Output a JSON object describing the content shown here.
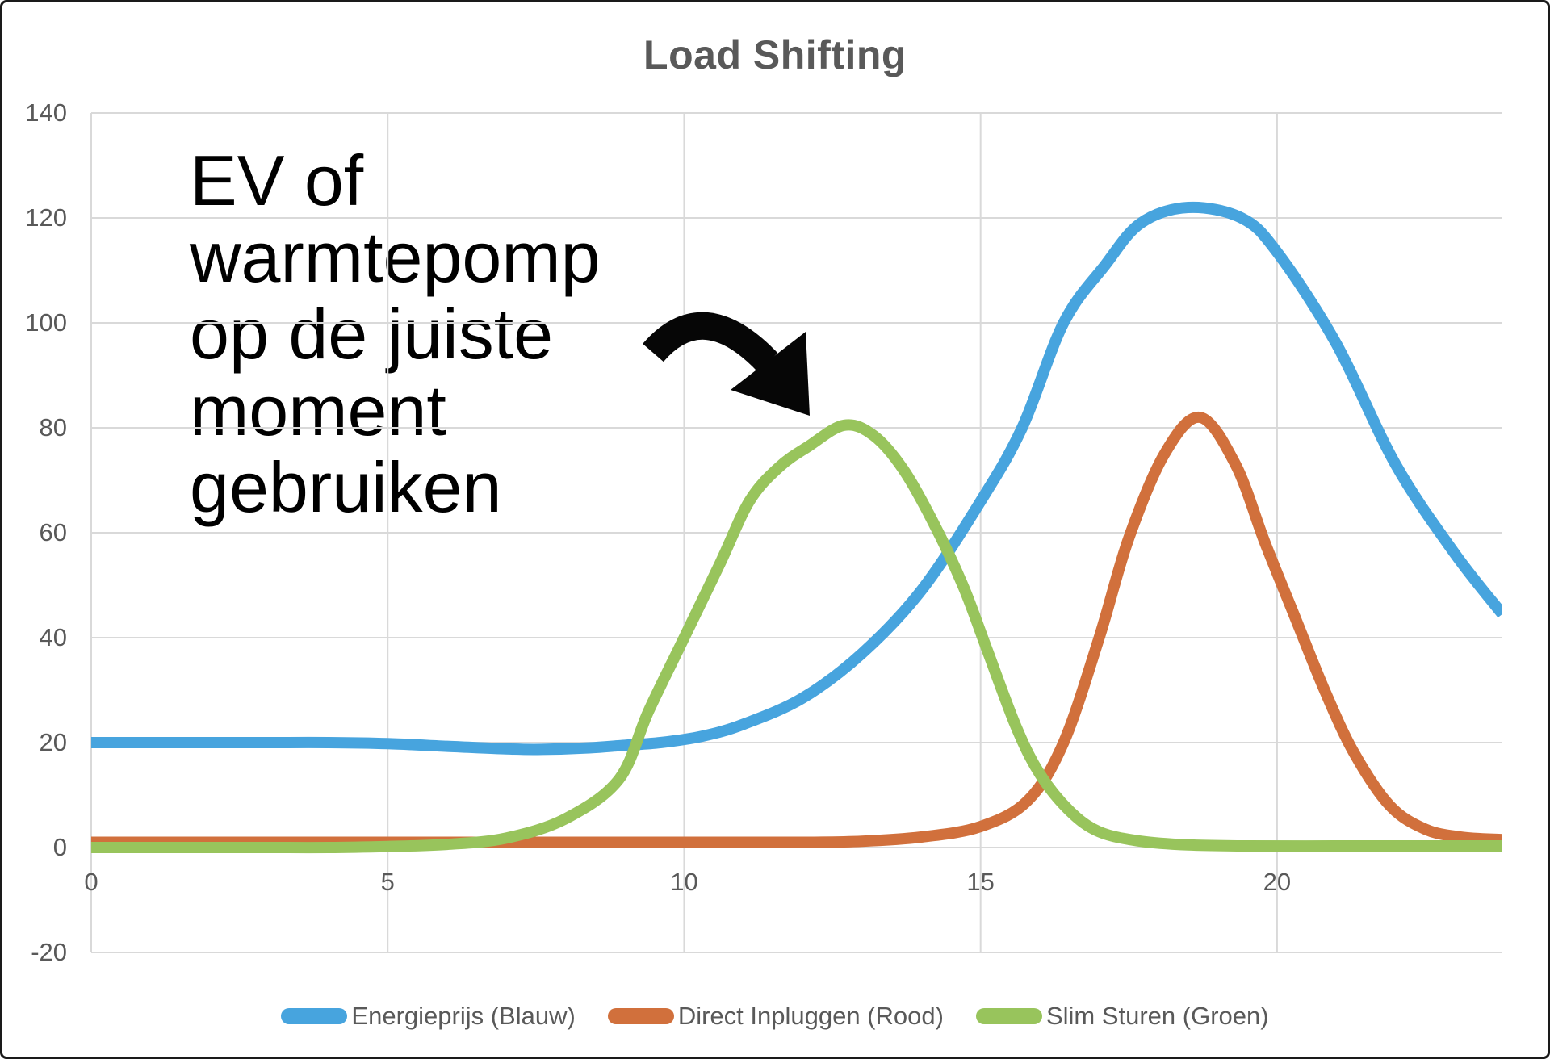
{
  "chart_data": {
    "type": "line",
    "title": "Load Shifting",
    "xlabel": "",
    "ylabel": "",
    "xlim": [
      0,
      23.8
    ],
    "ylim": [
      -20,
      140
    ],
    "x_ticks": [
      0,
      5,
      10,
      15,
      20
    ],
    "y_ticks": [
      140,
      120,
      100,
      80,
      60,
      40,
      20,
      0,
      -20
    ],
    "grid": true,
    "legend_position": "bottom",
    "grid_color": "#d9d9d9",
    "axis_text_color": "#595959",
    "annotation": "EV of\nwarmtepomp\nop de juiste\nmoment\ngebruiken",
    "series": [
      {
        "name": "Energieprijs (Blauw)",
        "color": "#47a4de",
        "points": [
          [
            0,
            20
          ],
          [
            1,
            20
          ],
          [
            2,
            20
          ],
          [
            3,
            20
          ],
          [
            4,
            20
          ],
          [
            5,
            19.8
          ],
          [
            6,
            19.3
          ],
          [
            7,
            18.8
          ],
          [
            7.6,
            18.7
          ],
          [
            8.4,
            19
          ],
          [
            9,
            19.5
          ],
          [
            9.6,
            20
          ],
          [
            10.3,
            21.2
          ],
          [
            11,
            23.5
          ],
          [
            12,
            28.5
          ],
          [
            13,
            37
          ],
          [
            14,
            49
          ],
          [
            15,
            66
          ],
          [
            15.7,
            80
          ],
          [
            16.4,
            100
          ],
          [
            17.1,
            111
          ],
          [
            17.7,
            119
          ],
          [
            18.5,
            122
          ],
          [
            19.4,
            120
          ],
          [
            20,
            113.5
          ],
          [
            21,
            96
          ],
          [
            22,
            73
          ],
          [
            23,
            56
          ],
          [
            23.8,
            44.5
          ]
        ]
      },
      {
        "name": "Direct Inpluggen (Rood)",
        "color": "#d1703c",
        "points": [
          [
            0,
            1
          ],
          [
            2,
            1
          ],
          [
            4,
            1
          ],
          [
            6,
            1
          ],
          [
            8,
            1
          ],
          [
            10,
            1
          ],
          [
            12,
            1
          ],
          [
            13,
            1.2
          ],
          [
            14,
            2
          ],
          [
            15,
            4
          ],
          [
            15.8,
            9
          ],
          [
            16.4,
            20
          ],
          [
            17,
            40
          ],
          [
            17.5,
            59
          ],
          [
            18.1,
            75
          ],
          [
            18.7,
            82
          ],
          [
            19.3,
            73
          ],
          [
            19.8,
            58
          ],
          [
            20.3,
            44
          ],
          [
            20.8,
            30
          ],
          [
            21.3,
            18
          ],
          [
            21.9,
            8
          ],
          [
            22.5,
            3.5
          ],
          [
            23.1,
            2
          ],
          [
            23.8,
            1.5
          ]
        ]
      },
      {
        "name": "Slim Sturen (Groen)",
        "color": "#98c45c",
        "points": [
          [
            0,
            0
          ],
          [
            1,
            0
          ],
          [
            2,
            0
          ],
          [
            3,
            0
          ],
          [
            4,
            0
          ],
          [
            5,
            0.2
          ],
          [
            6,
            0.6
          ],
          [
            7,
            1.8
          ],
          [
            8,
            5.5
          ],
          [
            8.9,
            13
          ],
          [
            9.4,
            26
          ],
          [
            10,
            40
          ],
          [
            10.6,
            54
          ],
          [
            11.1,
            66
          ],
          [
            11.6,
            72.5
          ],
          [
            12.1,
            76.5
          ],
          [
            12.7,
            80.5
          ],
          [
            13.2,
            78.5
          ],
          [
            13.7,
            72
          ],
          [
            14.2,
            62
          ],
          [
            14.7,
            50
          ],
          [
            15.1,
            38
          ],
          [
            15.6,
            23
          ],
          [
            16,
            14
          ],
          [
            16.5,
            7
          ],
          [
            17,
            3
          ],
          [
            17.7,
            1.2
          ],
          [
            18.5,
            0.5
          ],
          [
            19.5,
            0.3
          ],
          [
            21,
            0.3
          ],
          [
            22.5,
            0.3
          ],
          [
            23.8,
            0.3
          ]
        ]
      }
    ]
  }
}
